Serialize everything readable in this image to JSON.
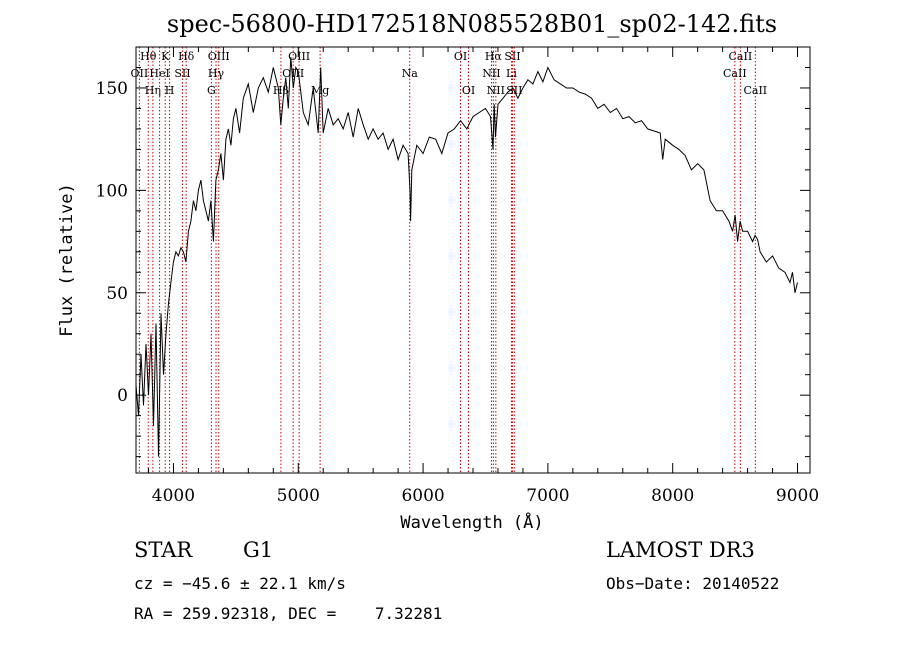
{
  "chart_data": {
    "type": "line",
    "title": "spec-56800-HD172518N085528B01_sp02-142.fits",
    "xlabel": "Wavelength (Å)",
    "ylabel": "Flux (relative)",
    "xlim": [
      3700,
      9100
    ],
    "ylim": [
      -38,
      170
    ],
    "xticks": [
      4000,
      5000,
      6000,
      7000,
      8000,
      9000
    ],
    "yticks": [
      0,
      50,
      100,
      150
    ],
    "series": [
      {
        "name": "flux",
        "x": [
          3700,
          3720,
          3740,
          3760,
          3780,
          3800,
          3820,
          3840,
          3860,
          3880,
          3900,
          3920,
          3940,
          3960,
          3980,
          4000,
          4020,
          4040,
          4060,
          4080,
          4100,
          4120,
          4140,
          4160,
          4180,
          4200,
          4220,
          4240,
          4260,
          4280,
          4300,
          4320,
          4340,
          4360,
          4380,
          4400,
          4420,
          4440,
          4460,
          4480,
          4500,
          4530,
          4560,
          4600,
          4640,
          4680,
          4720,
          4760,
          4800,
          4840,
          4860,
          4880,
          4900,
          4920,
          4940,
          4960,
          4980,
          5000,
          5040,
          5080,
          5120,
          5160,
          5180,
          5200,
          5240,
          5280,
          5320,
          5360,
          5400,
          5440,
          5480,
          5520,
          5560,
          5600,
          5640,
          5680,
          5720,
          5760,
          5800,
          5840,
          5880,
          5895,
          5900,
          5910,
          5950,
          6000,
          6050,
          6100,
          6150,
          6200,
          6250,
          6300,
          6350,
          6400,
          6450,
          6500,
          6540,
          6560,
          6570,
          6580,
          6600,
          6640,
          6680,
          6720,
          6760,
          6800,
          6840,
          6880,
          6920,
          6960,
          7000,
          7050,
          7100,
          7150,
          7200,
          7250,
          7300,
          7350,
          7400,
          7450,
          7500,
          7550,
          7600,
          7650,
          7700,
          7750,
          7800,
          7850,
          7900,
          7920,
          7940,
          7960,
          8000,
          8050,
          8100,
          8150,
          8200,
          8250,
          8300,
          8350,
          8400,
          8450,
          8480,
          8500,
          8520,
          8540,
          8560,
          8600,
          8640,
          8660,
          8680,
          8700,
          8750,
          8800,
          8850,
          8900,
          8940,
          8960,
          8980,
          9000
        ],
        "values": [
          5,
          -10,
          20,
          -5,
          25,
          0,
          30,
          -15,
          35,
          -30,
          40,
          10,
          30,
          45,
          55,
          65,
          70,
          68,
          72,
          70,
          65,
          80,
          85,
          95,
          90,
          100,
          105,
          95,
          90,
          85,
          95,
          75,
          105,
          110,
          118,
          105,
          125,
          130,
          122,
          135,
          140,
          128,
          145,
          152,
          138,
          150,
          155,
          148,
          160,
          150,
          132,
          145,
          155,
          140,
          165,
          150,
          160,
          158,
          138,
          132,
          150,
          128,
          160,
          128,
          140,
          132,
          135,
          130,
          138,
          126,
          140,
          132,
          125,
          130,
          125,
          128,
          120,
          125,
          115,
          122,
          118,
          100,
          85,
          110,
          122,
          118,
          126,
          125,
          118,
          128,
          130,
          134,
          130,
          136,
          138,
          140,
          136,
          120,
          142,
          126,
          142,
          145,
          148,
          150,
          145,
          150,
          154,
          152,
          158,
          153,
          160,
          154,
          152,
          150,
          150,
          148,
          147,
          145,
          140,
          142,
          138,
          140,
          135,
          136,
          133,
          134,
          130,
          129,
          128,
          115,
          125,
          124,
          122,
          120,
          117,
          110,
          113,
          110,
          95,
          90,
          90,
          85,
          80,
          88,
          75,
          85,
          80,
          80,
          75,
          78,
          76,
          70,
          65,
          68,
          62,
          60,
          55,
          60,
          50,
          55
        ]
      }
    ],
    "lines": [
      {
        "label": "Hθ",
        "x": 3798,
        "row": 1
      },
      {
        "label": "OII",
        "x": 3727,
        "row": 2
      },
      {
        "label": "Hη",
        "x": 3835,
        "row": 3
      },
      {
        "label": "K",
        "x": 3934,
        "row": 1
      },
      {
        "label": "HeI",
        "x": 3889,
        "row": 2
      },
      {
        "label": "H",
        "x": 3969,
        "row": 3
      },
      {
        "label": "SII",
        "x": 4072,
        "row": 2
      },
      {
        "label": "Hδ",
        "x": 4102,
        "row": 1
      },
      {
        "label": "OIII",
        "x": 4363,
        "row": 1
      },
      {
        "label": "Hγ",
        "x": 4341,
        "row": 2
      },
      {
        "label": "G",
        "x": 4304,
        "row": 3
      },
      {
        "label": "Hβ",
        "x": 4861,
        "row": 3
      },
      {
        "label": "OIII",
        "x": 4959,
        "row": 2
      },
      {
        "label": "OIII",
        "x": 5007,
        "row": 1
      },
      {
        "label": "Mg",
        "x": 5175,
        "row": 3
      },
      {
        "label": "Na",
        "x": 5893,
        "row": 2
      },
      {
        "label": "OI",
        "x": 6300,
        "row": 1
      },
      {
        "label": "OI",
        "x": 6364,
        "row": 3
      },
      {
        "label": "NII",
        "x": 6548,
        "row": 2
      },
      {
        "label": "Hα",
        "x": 6563,
        "row": 1
      },
      {
        "label": "NII",
        "x": 6583,
        "row": 3
      },
      {
        "label": "SII",
        "x": 6716,
        "row": 1
      },
      {
        "label": "Li",
        "x": 6708,
        "row": 2
      },
      {
        "label": "SII",
        "x": 6731,
        "row": 3
      },
      {
        "label": "CaII",
        "x": 8542,
        "row": 1
      },
      {
        "label": "CaII",
        "x": 8498,
        "row": 2
      },
      {
        "label": "CaII",
        "x": 8662,
        "row": 3
      }
    ]
  },
  "info": {
    "object_type": "STAR",
    "subclass": "G1",
    "redshift_line": "cz = −45.6 ± 22.1 km/s",
    "coords_line": "RA = 259.92318, DEC =    7.32281",
    "survey": "LAMOST DR3",
    "obs_date_line": "Obs−Date: 20140522"
  }
}
